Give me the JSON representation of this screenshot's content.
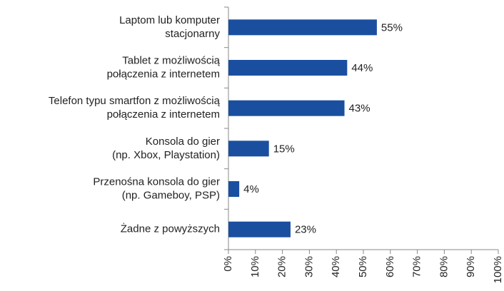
{
  "chart_data": {
    "type": "bar",
    "orientation": "horizontal",
    "categories": [
      "Laptom lub komputer\nstacjonarny",
      "Tablet z możliwością\npołączenia z internetem",
      "Telefon typu smartfon z możliwością\npołączenia z internetem",
      "Konsola do gier\n(np. Xbox, Playstation)",
      "Przenośna konsola do gier\n(np. Gameboy, PSP)",
      "Żadne z powyższych"
    ],
    "values": [
      55,
      44,
      43,
      15,
      4,
      23
    ],
    "value_labels": [
      "55%",
      "44%",
      "43%",
      "15%",
      "4%",
      "23%"
    ],
    "color": "#1a4fa0",
    "xlim": [
      0,
      100
    ],
    "xticks": [
      {
        "value": 0,
        "label": "0%"
      },
      {
        "value": 10,
        "label": "10%"
      },
      {
        "value": 20,
        "label": "20%"
      },
      {
        "value": 30,
        "label": "30%"
      },
      {
        "value": 40,
        "label": "40%"
      },
      {
        "value": 50,
        "label": "50%"
      },
      {
        "value": 60,
        "label": "60%"
      },
      {
        "value": 70,
        "label": "70%"
      },
      {
        "value": 80,
        "label": "80%"
      },
      {
        "value": 90,
        "label": "90%"
      },
      {
        "value": 100,
        "label": "100%"
      }
    ]
  }
}
